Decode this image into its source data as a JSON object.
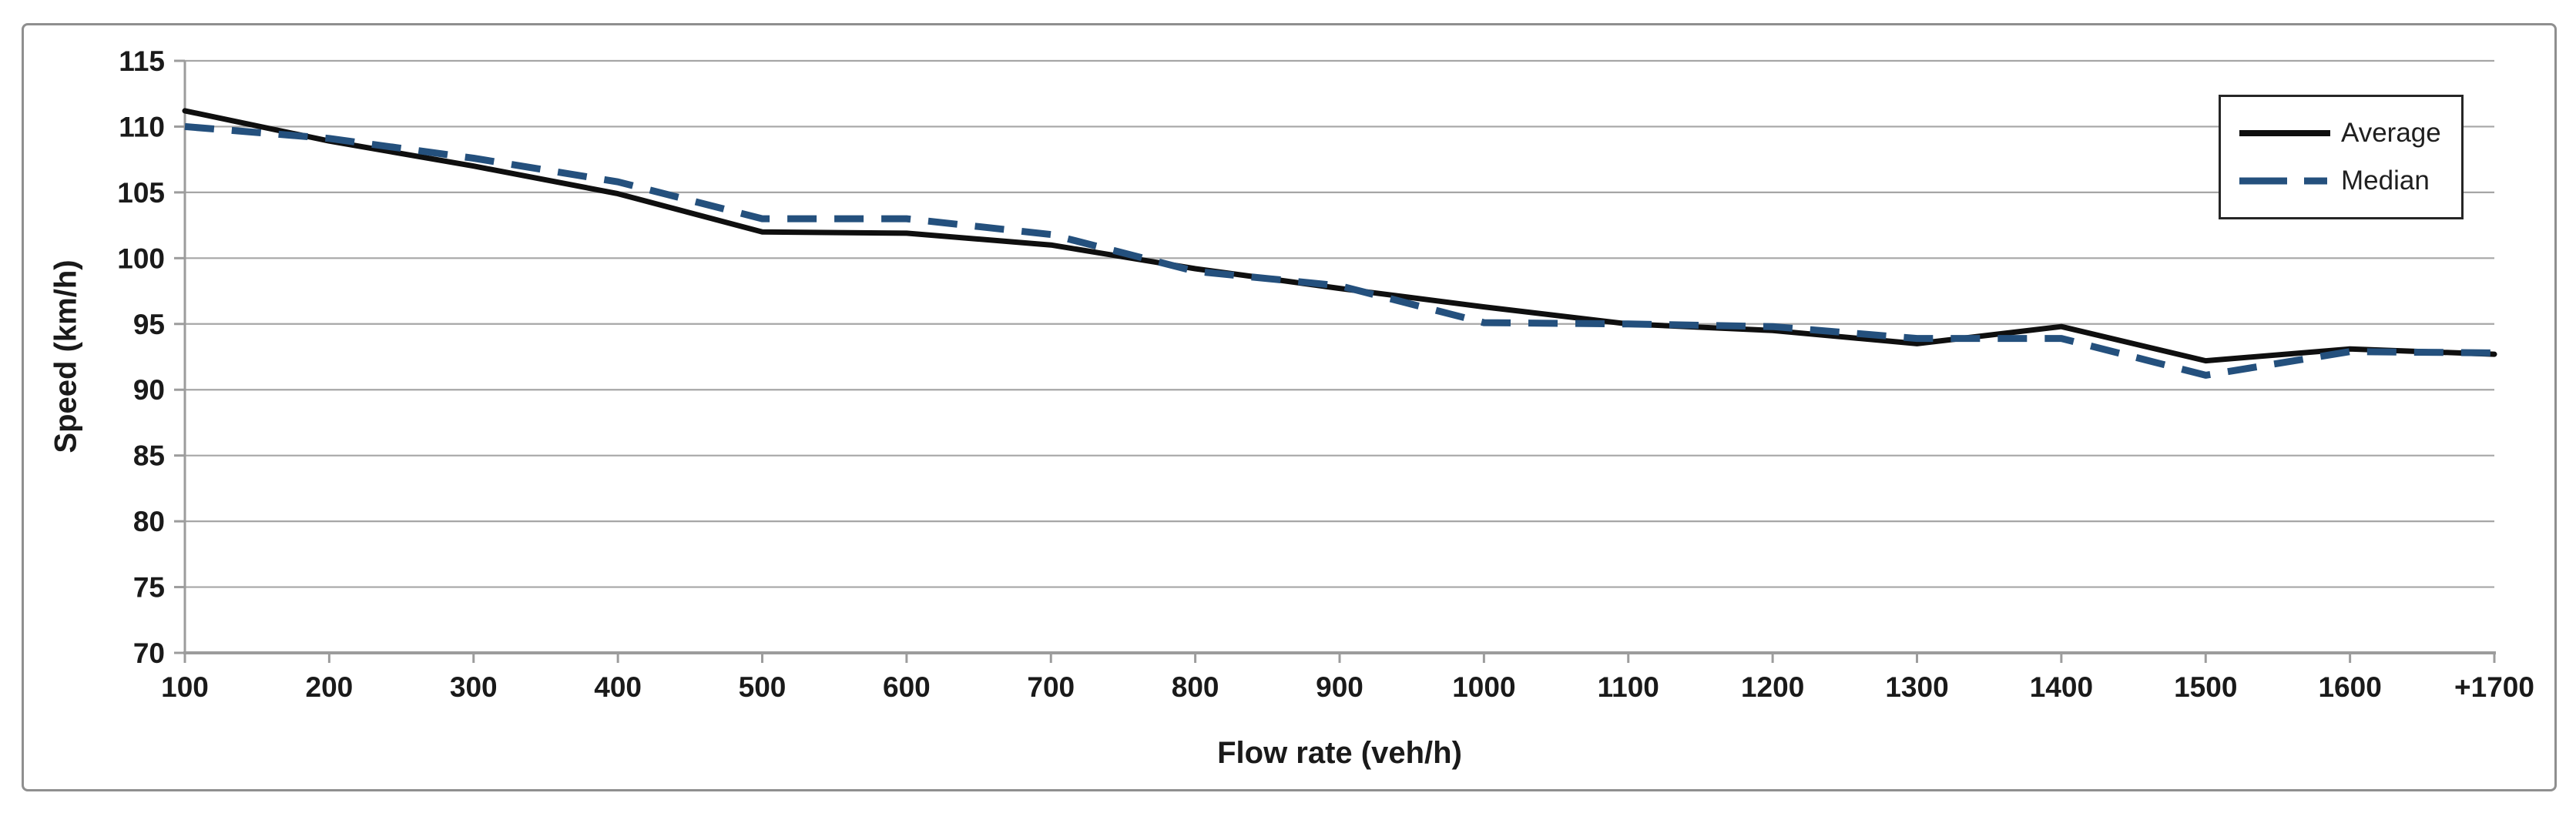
{
  "figure": {
    "background": "#ffffff",
    "border_color": "#8f8f8f"
  },
  "chart_data": {
    "type": "line",
    "title": "",
    "xlabel": "Flow rate (veh/h)",
    "ylabel": "Speed (km/h)",
    "categories": [
      "100",
      "200",
      "300",
      "400",
      "500",
      "600",
      "700",
      "800",
      "900",
      "1000",
      "1100",
      "1200",
      "1300",
      "1400",
      "1500",
      "1600",
      "+1700"
    ],
    "series": [
      {
        "name": "Average",
        "color": "#0f0f0f",
        "line_style": "solid",
        "values": [
          111.2,
          108.9,
          107.0,
          104.9,
          102.0,
          101.9,
          101.0,
          99.2,
          97.7,
          96.3,
          95.0,
          94.5,
          93.5,
          94.8,
          92.2,
          93.1,
          92.7
        ]
      },
      {
        "name": "Median",
        "color": "#24507D",
        "line_style": "dashed",
        "values": [
          110.0,
          109.1,
          107.6,
          105.8,
          103.0,
          103.0,
          101.8,
          99.0,
          97.9,
          95.1,
          95.0,
          94.8,
          93.9,
          93.9,
          91.1,
          92.9,
          92.8
        ]
      }
    ],
    "ylim": [
      70,
      115
    ],
    "y_ticks": [
      70,
      75,
      80,
      85,
      90,
      95,
      100,
      105,
      110,
      115
    ],
    "grid": true,
    "gridline_color": "#A6A6A6",
    "axis_color": "#9C9C9C",
    "tick_label_color": "#1a1a1a",
    "legend_position": "top-right"
  }
}
